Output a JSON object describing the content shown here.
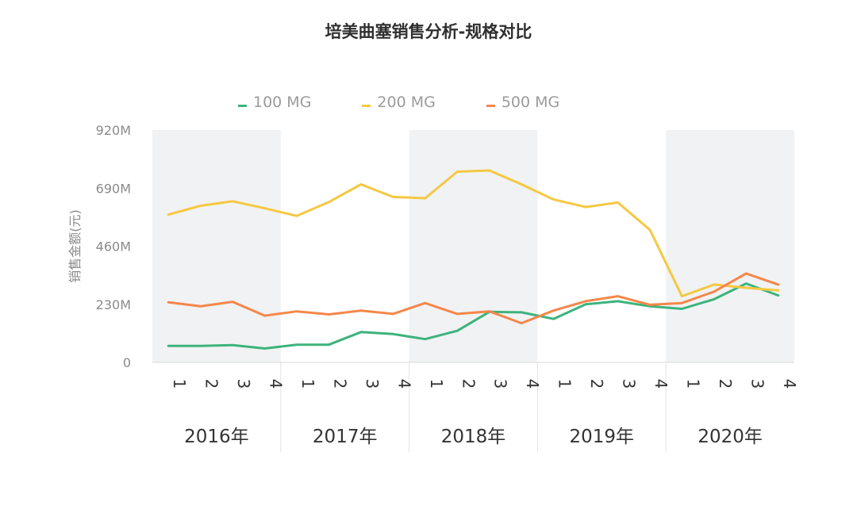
{
  "chart_data": {
    "type": "line",
    "title": "培美曲塞销售分析-规格对比",
    "ylabel": "销售金额(元)",
    "xlabel": "",
    "ylim": [
      0,
      920
    ],
    "yticks": [
      "0",
      "230M",
      "460M",
      "690M",
      "920M"
    ],
    "ytick_values": [
      0,
      230,
      460,
      690,
      920
    ],
    "unit": "M",
    "grid": false,
    "legend": "top-center",
    "year_groups": [
      {
        "label": "2016年",
        "quarters": [
          "1",
          "2",
          "3",
          "4"
        ]
      },
      {
        "label": "2017年",
        "quarters": [
          "1",
          "2",
          "3",
          "4"
        ]
      },
      {
        "label": "2018年",
        "quarters": [
          "1",
          "2",
          "3",
          "4"
        ]
      },
      {
        "label": "2019年",
        "quarters": [
          "1",
          "2",
          "3",
          "4"
        ]
      },
      {
        "label": "2020年",
        "quarters": [
          "1",
          "2",
          "3",
          "4"
        ]
      }
    ],
    "series": [
      {
        "name": "100 MG",
        "color": "#3db37d",
        "values": [
          65,
          65,
          68,
          55,
          70,
          70,
          120,
          112,
          92,
          125,
          200,
          198,
          172,
          230,
          242,
          222,
          212,
          250,
          312,
          265
        ]
      },
      {
        "name": "200 MG",
        "color": "#f5c842",
        "values": [
          585,
          620,
          638,
          610,
          580,
          635,
          705,
          655,
          650,
          755,
          760,
          705,
          645,
          615,
          633,
          525,
          262,
          308,
          295,
          285
        ]
      },
      {
        "name": "500 MG",
        "color": "#f5874a",
        "values": [
          238,
          222,
          240,
          185,
          202,
          190,
          205,
          192,
          235,
          192,
          202,
          155,
          205,
          242,
          262,
          228,
          235,
          280,
          352,
          308
        ]
      }
    ]
  }
}
